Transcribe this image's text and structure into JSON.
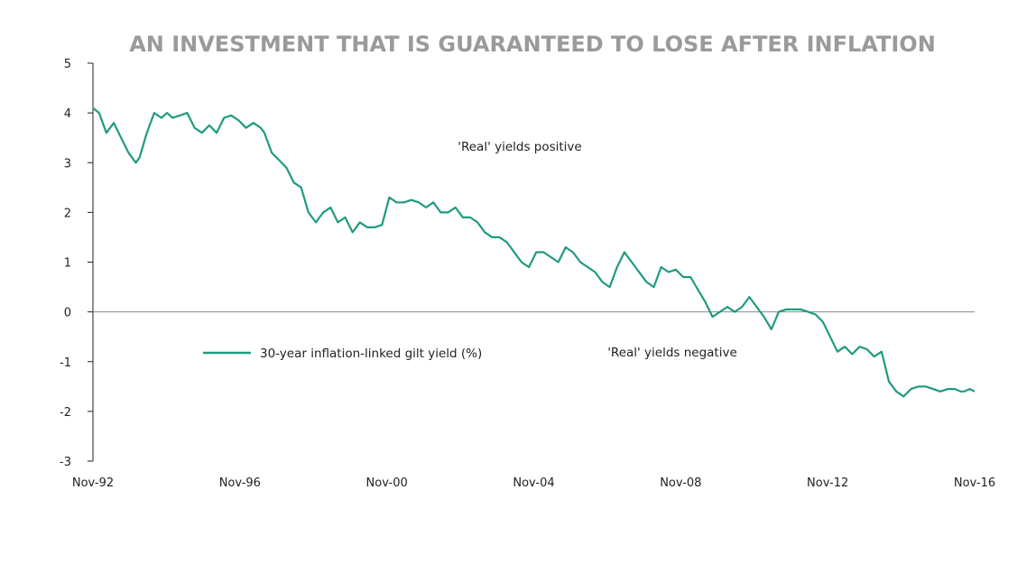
{
  "chart_data": {
    "type": "line",
    "title": "AN INVESTMENT THAT IS GUARANTEED TO LOSE AFTER INFLATION",
    "xlabel": "",
    "ylabel": "",
    "x_tick_labels": [
      "Nov-92",
      "Nov-96",
      "Nov-00",
      "Nov-04",
      "Nov-08",
      "Nov-12",
      "Nov-16"
    ],
    "y_ticks": [
      5,
      4,
      3,
      2,
      1,
      0,
      -1,
      -2,
      -3
    ],
    "ylim": [
      -3,
      5
    ],
    "xlim": [
      1992.833,
      2016.833
    ],
    "grid": false,
    "legend_position": "center-left",
    "annotations": [
      {
        "text": "'Real' yields positive"
      },
      {
        "text": "'Real' yields negative"
      }
    ],
    "series": [
      {
        "name": "30-year inflation-linked gilt yield (%)",
        "color": "#1f9b80",
        "x": [
          1992.833,
          1993.0,
          1993.2,
          1993.4,
          1993.6,
          1993.8,
          1994.0,
          1994.1,
          1994.3,
          1994.5,
          1994.7,
          1994.85,
          1995.0,
          1995.2,
          1995.4,
          1995.6,
          1995.8,
          1996.0,
          1996.2,
          1996.4,
          1996.6,
          1996.8,
          1997.0,
          1997.2,
          1997.4,
          1997.5,
          1997.7,
          1997.9,
          1998.1,
          1998.3,
          1998.5,
          1998.7,
          1998.9,
          1999.1,
          1999.3,
          1999.5,
          1999.7,
          1999.9,
          2000.1,
          2000.3,
          2000.5,
          2000.7,
          2000.9,
          2001.1,
          2001.3,
          2001.5,
          2001.7,
          2001.9,
          2002.1,
          2002.3,
          2002.5,
          2002.7,
          2002.9,
          2003.1,
          2003.3,
          2003.5,
          2003.7,
          2003.9,
          2004.1,
          2004.3,
          2004.5,
          2004.7,
          2004.9,
          2005.1,
          2005.3,
          2005.5,
          2005.7,
          2005.9,
          2006.1,
          2006.3,
          2006.5,
          2006.7,
          2006.9,
          2007.1,
          2007.3,
          2007.5,
          2007.7,
          2007.9,
          2008.1,
          2008.3,
          2008.5,
          2008.7,
          2008.9,
          2009.1,
          2009.3,
          2009.5,
          2009.7,
          2009.9,
          2010.1,
          2010.3,
          2010.5,
          2010.7,
          2010.9,
          2011.1,
          2011.3,
          2011.5,
          2011.7,
          2011.9,
          2012.1,
          2012.3,
          2012.5,
          2012.7,
          2012.9,
          2013.1,
          2013.3,
          2013.5,
          2013.7,
          2013.9,
          2014.1,
          2014.3,
          2014.5,
          2014.7,
          2014.9,
          2015.1,
          2015.3,
          2015.5,
          2015.7,
          2015.9,
          2016.1,
          2016.3,
          2016.45,
          2016.55,
          2016.7,
          2016.833
        ],
        "values": [
          4.1,
          4.0,
          3.6,
          3.8,
          3.5,
          3.2,
          3.0,
          3.1,
          3.6,
          4.0,
          3.9,
          4.0,
          3.9,
          3.95,
          4.0,
          3.7,
          3.6,
          3.75,
          3.6,
          3.9,
          3.95,
          3.85,
          3.7,
          3.8,
          3.7,
          3.6,
          3.2,
          3.05,
          2.9,
          2.6,
          2.5,
          2.0,
          1.8,
          2.0,
          2.1,
          1.8,
          1.9,
          1.6,
          1.8,
          1.7,
          1.7,
          1.75,
          2.3,
          2.2,
          2.2,
          2.25,
          2.2,
          2.1,
          2.2,
          2.0,
          2.0,
          2.1,
          1.9,
          1.9,
          1.8,
          1.6,
          1.5,
          1.5,
          1.4,
          1.2,
          1.0,
          0.9,
          1.2,
          1.2,
          1.1,
          1.0,
          1.3,
          1.2,
          1.0,
          0.9,
          0.8,
          0.6,
          0.5,
          0.9,
          1.2,
          1.0,
          0.8,
          0.6,
          0.5,
          0.9,
          0.8,
          0.85,
          0.7,
          0.7,
          0.45,
          0.2,
          -0.1,
          0.0,
          0.1,
          0.0,
          0.1,
          0.3,
          0.1,
          -0.1,
          -0.35,
          0.0,
          0.05,
          0.05,
          0.05,
          0.0,
          -0.05,
          -0.2,
          -0.5,
          -0.8,
          -0.7,
          -0.85,
          -0.7,
          -0.75,
          -0.9,
          -0.8,
          -1.4,
          -1.6,
          -1.7,
          -1.55,
          -1.5,
          -1.5,
          -1.55,
          -1.6,
          -1.55,
          -1.55,
          -1.6,
          -1.6,
          -1.55,
          -1.6
        ]
      }
    ]
  }
}
